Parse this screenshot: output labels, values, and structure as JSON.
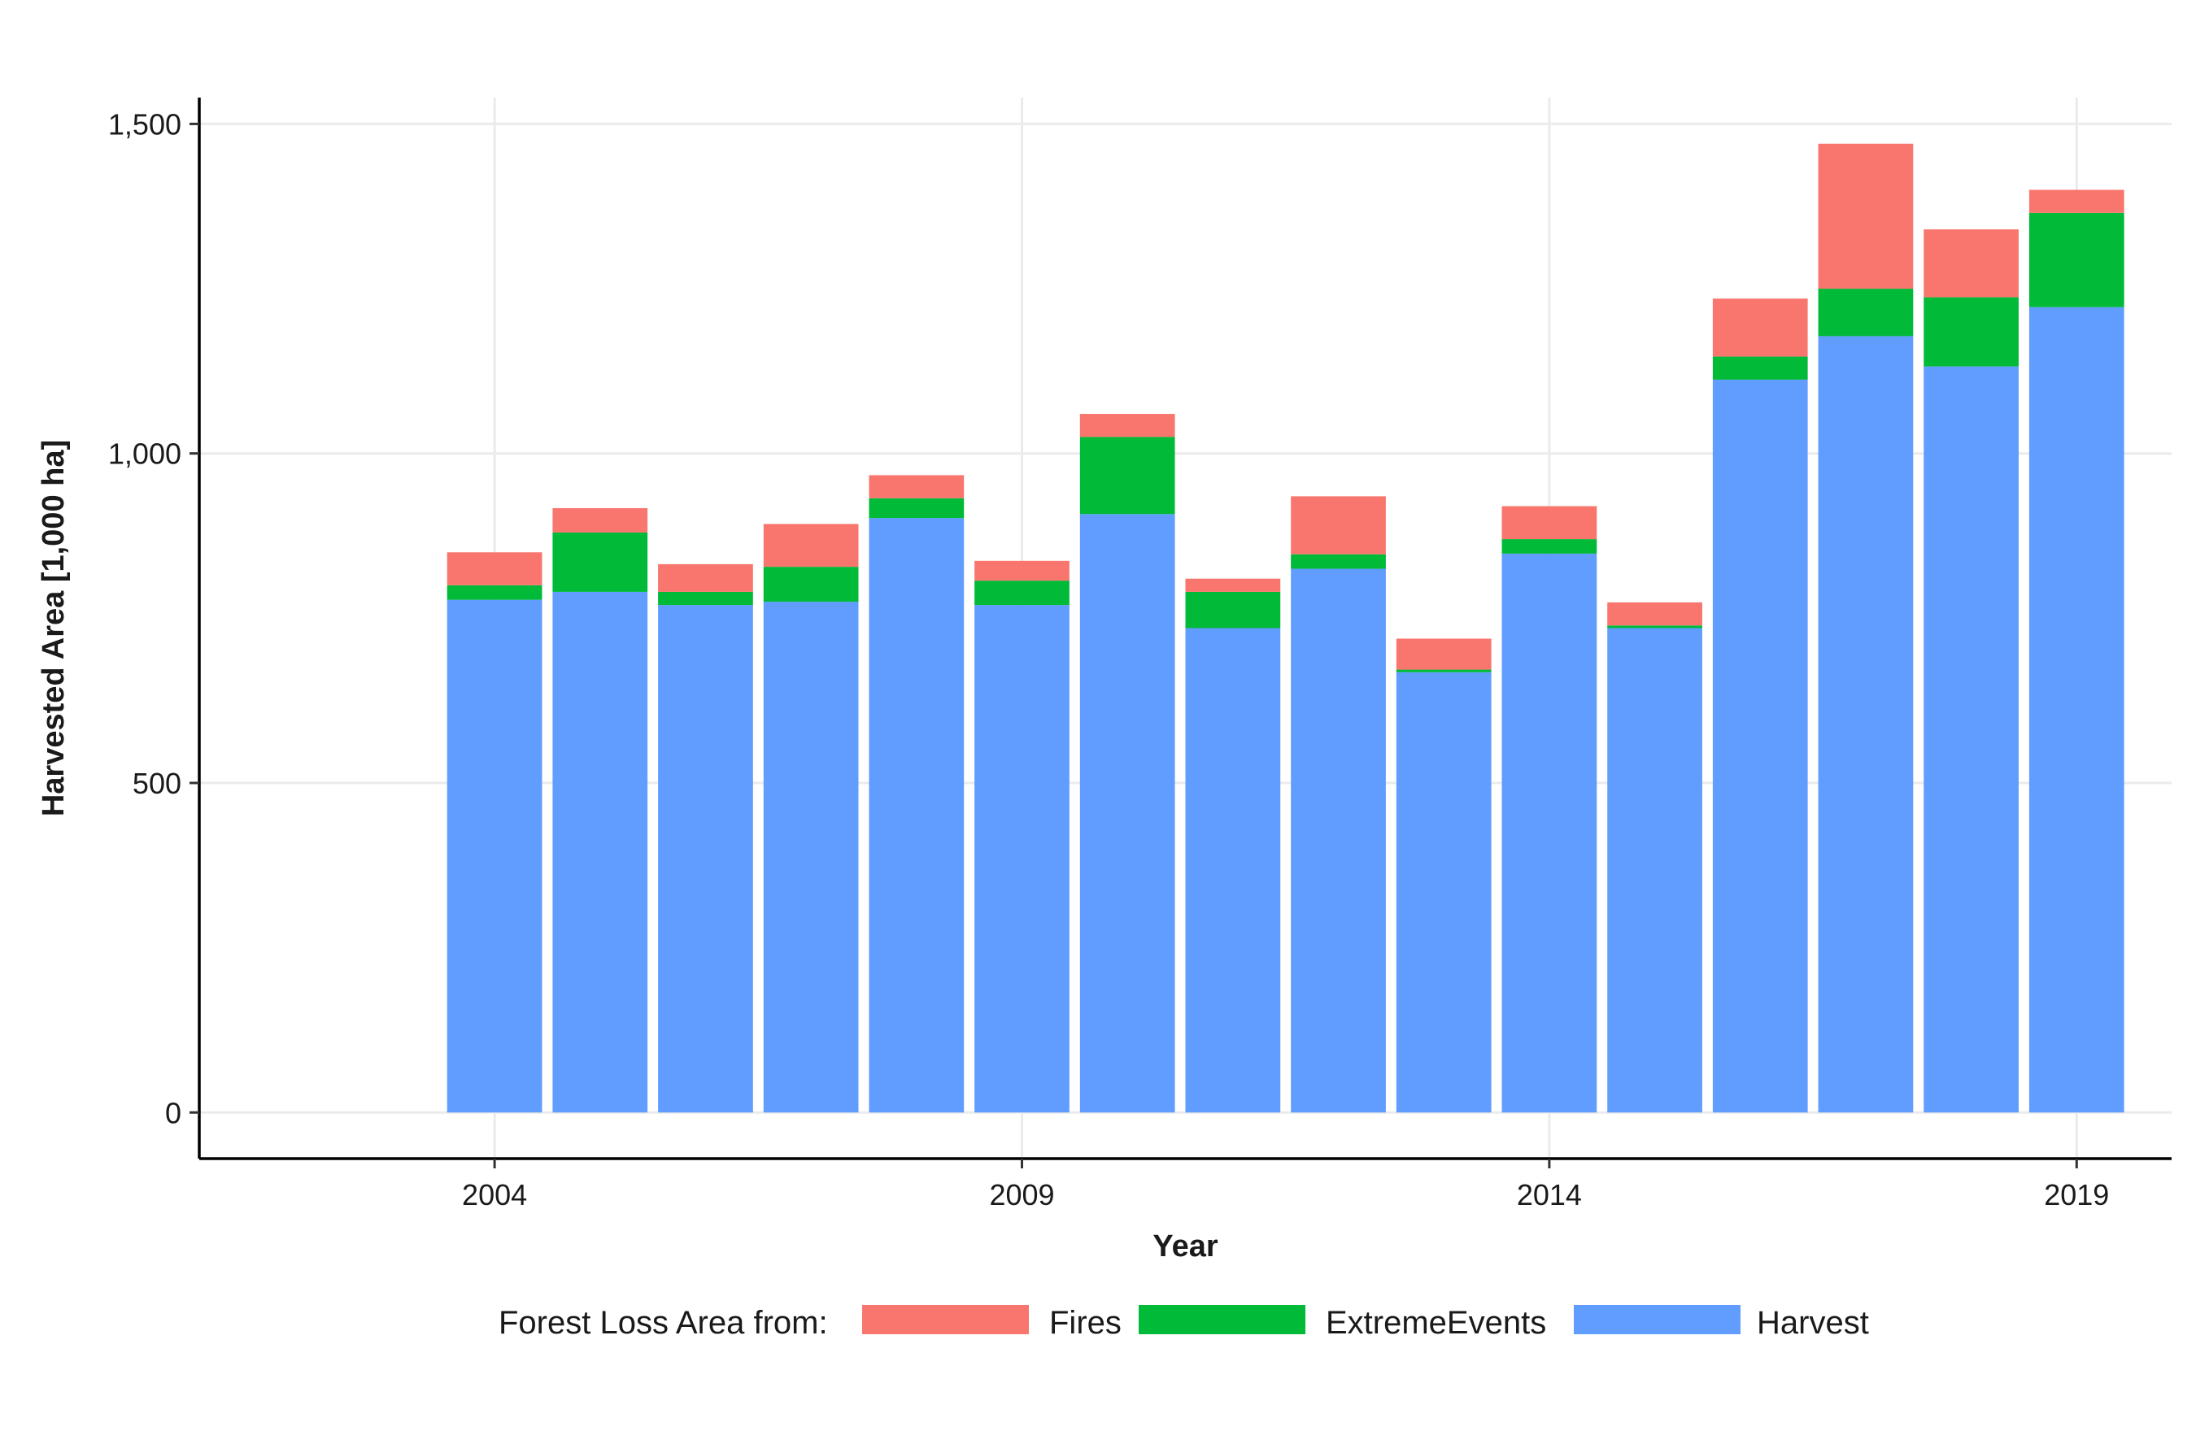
{
  "chart_data": {
    "type": "bar",
    "stacked": true,
    "x": [
      2004,
      2005,
      2006,
      2007,
      2008,
      2009,
      2010,
      2011,
      2012,
      2013,
      2014,
      2015,
      2016,
      2017,
      2018,
      2019
    ],
    "series": [
      {
        "name": "Harvest",
        "color": "#619CFF",
        "values": [
          778,
          790,
          770,
          775,
          902,
          770,
          908,
          735,
          825,
          668,
          848,
          735,
          1112,
          1178,
          1132,
          1222
        ]
      },
      {
        "name": "ExtremeEvents",
        "color": "#00BA38",
        "values": [
          22,
          90,
          20,
          53,
          30,
          37,
          117,
          55,
          22,
          4,
          22,
          4,
          35,
          72,
          105,
          143
        ]
      },
      {
        "name": "Fires",
        "color": "#F8766D",
        "values": [
          50,
          37,
          42,
          65,
          35,
          30,
          35,
          20,
          88,
          47,
          50,
          35,
          88,
          220,
          103,
          35
        ]
      }
    ],
    "xlabel": "Year",
    "ylabel": "Harvested Area [1,000 ha]",
    "xlim": [
      2001.2,
      2019.9
    ],
    "ylim": [
      -70,
      1540
    ],
    "xticks": [
      2004,
      2009,
      2014,
      2019
    ],
    "xtick_labels": [
      "2004",
      "2009",
      "2014",
      "2019"
    ],
    "yticks": [
      0,
      500,
      1000,
      1500
    ],
    "ytick_labels": [
      "0",
      "500",
      "1,000",
      "1,500"
    ],
    "grid": true,
    "legend": {
      "title": "Forest Loss Area from:",
      "position": "bottom",
      "items": [
        "Fires",
        "ExtremeEvents",
        "Harvest"
      ]
    }
  }
}
